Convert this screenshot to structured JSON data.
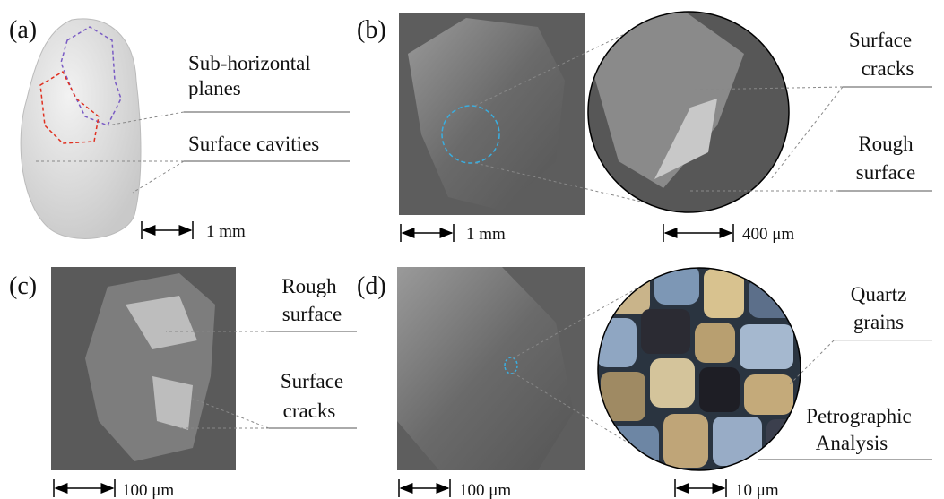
{
  "panels": [
    {
      "label": "(a)",
      "annotations": [
        [
          "Sub-horizontal",
          "planes"
        ],
        [
          "Surface cavities"
        ]
      ],
      "scale_bars": [
        "1 mm"
      ]
    },
    {
      "label": "(b)",
      "annotations": [
        [
          "Surface",
          "cracks"
        ],
        [
          "Rough",
          "surface"
        ]
      ],
      "scale_bars": [
        "1 mm",
        "400 μm"
      ]
    },
    {
      "label": "(c)",
      "annotations": [
        [
          "Rough",
          "surface"
        ],
        [
          "Surface",
          "cracks"
        ]
      ],
      "scale_bars": [
        "100 μm"
      ]
    },
    {
      "label": "(d)",
      "annotations": [
        [
          "Quartz",
          "grains"
        ],
        [
          "Petrographic",
          "Analysis"
        ]
      ],
      "scale_bars": [
        "100 μm",
        "10 μm"
      ]
    }
  ]
}
